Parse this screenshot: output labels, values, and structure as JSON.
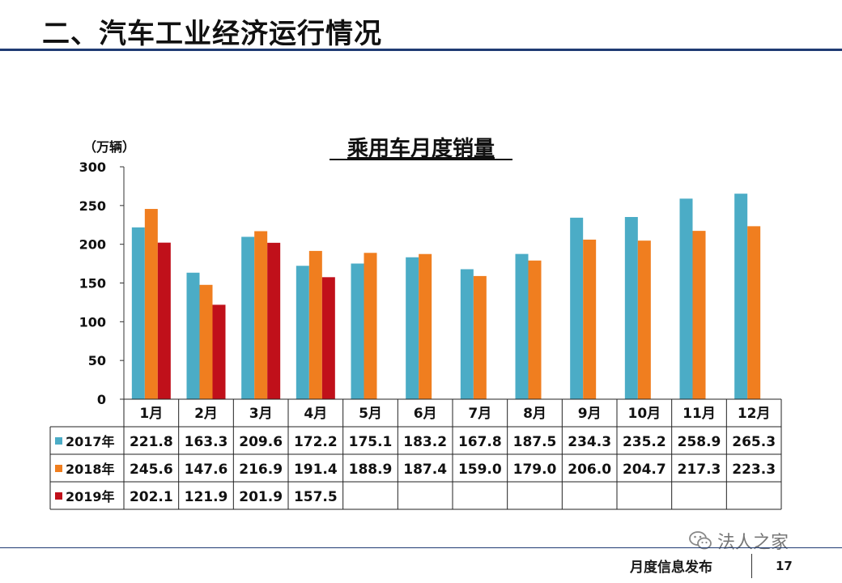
{
  "slide": {
    "title": "二、汽车工业经济运行情况",
    "footer_text": "月度信息发布",
    "page_number": "17",
    "watermark": "法人之家",
    "watermark_icon": "wechat-icon"
  },
  "chart_data": {
    "type": "bar",
    "title": "乘用车月度销量",
    "unit_label": "（万辆）",
    "categories": [
      "1月",
      "2月",
      "3月",
      "4月",
      "5月",
      "6月",
      "7月",
      "8月",
      "9月",
      "10月",
      "11月",
      "12月"
    ],
    "ylim": [
      0,
      300
    ],
    "yticks": [
      "0",
      "50",
      "100",
      "150",
      "200",
      "250",
      "300"
    ],
    "grid": false,
    "legend": "table-below",
    "series": [
      {
        "name": "2017年",
        "color": "#4bacc6",
        "values": [
          221.8,
          163.3,
          209.6,
          172.2,
          175.1,
          183.2,
          167.8,
          187.5,
          234.3,
          235.2,
          258.9,
          265.3
        ]
      },
      {
        "name": "2018年",
        "color": "#f07e1f",
        "values": [
          245.6,
          147.6,
          216.9,
          191.4,
          188.9,
          187.4,
          159.0,
          179.0,
          206.0,
          204.7,
          217.3,
          223.3
        ]
      },
      {
        "name": "2019年",
        "color": "#c0101a",
        "values": [
          202.1,
          121.9,
          201.9,
          157.5,
          null,
          null,
          null,
          null,
          null,
          null,
          null,
          null
        ]
      }
    ],
    "table": [
      [
        "221.8",
        "163.3",
        "209.6",
        "172.2",
        "175.1",
        "183.2",
        "167.8",
        "187.5",
        "234.3",
        "235.2",
        "258.9",
        "265.3"
      ],
      [
        "245.6",
        "147.6",
        "216.9",
        "191.4",
        "188.9",
        "187.4",
        "159.0",
        "179.0",
        "206.0",
        "204.7",
        "217.3",
        "223.3"
      ],
      [
        "202.1",
        "121.9",
        "201.9",
        "157.5",
        "",
        "",
        "",
        "",
        "",
        "",
        "",
        ""
      ]
    ]
  }
}
